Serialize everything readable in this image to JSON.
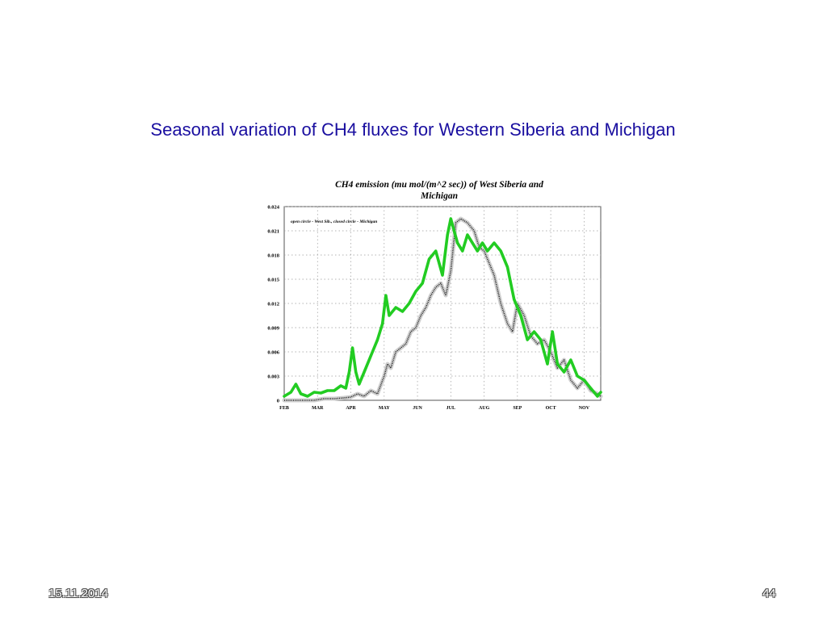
{
  "slide": {
    "title": "Seasonal variation of  CH4 fluxes for Western Siberia and Michigan",
    "date": "15.11.2014",
    "page_number": "44"
  },
  "chart_data": {
    "type": "line",
    "title_line1": "CH4 emission (mu mol/(m^2 sec)) of West Siberia and",
    "title_line2": "Michigan",
    "annotation": "open circle - West Sib., closed circle - Michigan",
    "x_labels": [
      "FEB",
      "MAR",
      "APR",
      "MAY",
      "JUN",
      "JUL",
      "AUG",
      "SEP",
      "OCT",
      "NOV"
    ],
    "y_ticks": [
      "0",
      "0.003",
      "0.006",
      "0.009",
      "0.012",
      "0.015",
      "0.018",
      "0.021",
      "0.024"
    ],
    "xlim": [
      0,
      9.5
    ],
    "ylim": [
      0,
      0.024
    ],
    "grid": true,
    "series": [
      {
        "color": "#22cc22",
        "x": [
          0,
          0.2,
          0.35,
          0.5,
          0.7,
          0.9,
          1.1,
          1.3,
          1.5,
          1.7,
          1.85,
          1.95,
          2.05,
          2.15,
          2.25,
          2.45,
          2.65,
          2.8,
          2.95,
          3.05,
          3.15,
          3.35,
          3.55,
          3.75,
          3.95,
          4.15,
          4.35,
          4.55,
          4.75,
          4.9,
          5.0,
          5.1,
          5.2,
          5.35,
          5.5,
          5.65,
          5.8,
          5.95,
          6.1,
          6.3,
          6.5,
          6.7,
          6.9,
          7.1,
          7.3,
          7.5,
          7.7,
          7.9,
          8.05,
          8.2,
          8.4,
          8.6,
          8.8,
          9.0,
          9.2,
          9.4,
          9.5
        ],
        "y": [
          0.0005,
          0.001,
          0.002,
          0.0008,
          0.0005,
          0.001,
          0.0009,
          0.0012,
          0.0012,
          0.0018,
          0.0015,
          0.0035,
          0.0065,
          0.0035,
          0.002,
          0.004,
          0.006,
          0.0075,
          0.0095,
          0.013,
          0.0105,
          0.0115,
          0.011,
          0.012,
          0.0135,
          0.0145,
          0.0175,
          0.0185,
          0.0155,
          0.0205,
          0.0225,
          0.021,
          0.0195,
          0.0185,
          0.0205,
          0.0195,
          0.0185,
          0.0195,
          0.0185,
          0.0195,
          0.0185,
          0.0165,
          0.0125,
          0.0105,
          0.0075,
          0.0085,
          0.0075,
          0.0045,
          0.0085,
          0.0045,
          0.0035,
          0.005,
          0.003,
          0.0025,
          0.0015,
          0.0005,
          0.001
        ]
      },
      {
        "color": "#222222",
        "x": [
          0,
          0.3,
          0.6,
          0.9,
          1.2,
          1.5,
          1.8,
          2.0,
          2.2,
          2.4,
          2.6,
          2.8,
          3.0,
          3.1,
          3.2,
          3.35,
          3.5,
          3.65,
          3.8,
          3.95,
          4.1,
          4.25,
          4.4,
          4.55,
          4.7,
          4.85,
          5.0,
          5.15,
          5.3,
          5.5,
          5.7,
          5.85,
          6.0,
          6.15,
          6.3,
          6.5,
          6.7,
          6.85,
          7.0,
          7.2,
          7.4,
          7.6,
          7.8,
          8.0,
          8.2,
          8.4,
          8.6,
          8.8,
          9.0,
          9.2,
          9.4,
          9.5
        ],
        "y": [
          0,
          0,
          0,
          0,
          0.0002,
          0.0002,
          0.0003,
          0.0004,
          0.0008,
          0.0005,
          0.0012,
          0.0008,
          0.003,
          0.0045,
          0.004,
          0.006,
          0.0065,
          0.007,
          0.0085,
          0.009,
          0.0105,
          0.0115,
          0.013,
          0.014,
          0.0145,
          0.013,
          0.016,
          0.022,
          0.0225,
          0.022,
          0.021,
          0.019,
          0.0185,
          0.017,
          0.0155,
          0.012,
          0.0095,
          0.0085,
          0.012,
          0.0105,
          0.008,
          0.007,
          0.0075,
          0.006,
          0.004,
          0.005,
          0.0025,
          0.0015,
          0.0025,
          0.0012,
          0.0008,
          0.0005
        ]
      }
    ]
  }
}
